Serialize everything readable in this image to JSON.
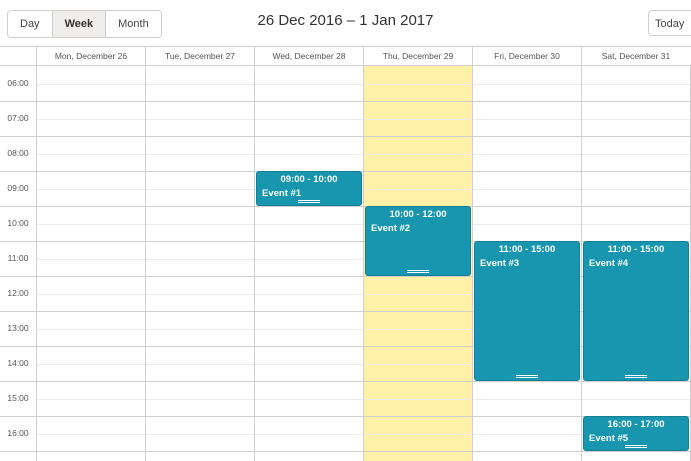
{
  "toolbar": {
    "views": [
      {
        "label": "Day",
        "active": false
      },
      {
        "label": "Week",
        "active": true
      },
      {
        "label": "Month",
        "active": false
      }
    ],
    "range_title": "26 Dec 2016 – 1 Jan 2017",
    "today_label": "Today"
  },
  "calendar": {
    "days": [
      "Mon, December 26",
      "Tue, December 27",
      "Wed, December 28",
      "Thu, December 29",
      "Fri, December 30",
      "Sat, December 31"
    ],
    "today_index": 3,
    "hours": [
      "06:00",
      "07:00",
      "08:00",
      "09:00",
      "10:00",
      "11:00",
      "12:00",
      "13:00",
      "14:00",
      "15:00",
      "16:00"
    ],
    "events": [
      {
        "day": 2,
        "start": 9,
        "end": 10,
        "time": "09:00 - 10:00",
        "title": "Event #1"
      },
      {
        "day": 3,
        "start": 10,
        "end": 12,
        "time": "10:00 - 12:00",
        "title": "Event #2"
      },
      {
        "day": 4,
        "start": 11,
        "end": 15,
        "time": "11:00 - 15:00",
        "title": "Event #3"
      },
      {
        "day": 5,
        "start": 11,
        "end": 15,
        "time": "11:00 - 15:00",
        "title": "Event #4"
      },
      {
        "day": 5,
        "start": 16,
        "end": 17,
        "time": "16:00 - 17:00",
        "title": "Event #5"
      }
    ],
    "colors": {
      "event": "#1896af",
      "today": "#fff2a8"
    }
  }
}
